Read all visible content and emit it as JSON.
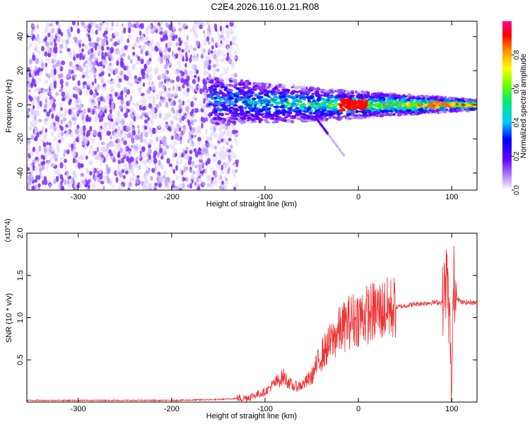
{
  "title": "C2E4.2026.116.01.21.R08",
  "chart_data": [
    {
      "type": "heatmap",
      "xlabel": "Height of straight line (km)",
      "ylabel": "Frequency (Hz)",
      "xlim": [
        -355,
        127
      ],
      "ylim": [
        -50,
        49
      ],
      "x_ticks": [
        -300,
        -200,
        -100,
        0,
        100
      ],
      "x_tick_labels": [
        "-300",
        "-200",
        "-100",
        "0",
        "100"
      ],
      "y_ticks": [
        -40,
        -20,
        0,
        20,
        40
      ],
      "y_tick_labels": [
        "-40",
        "-20",
        "0",
        "20",
        "40"
      ],
      "colorbar": {
        "label": "Normalized spectral amplitude",
        "range": [
          0,
          1
        ],
        "ticks": [
          0,
          0.2,
          0.4,
          0.6,
          0.8
        ],
        "tick_labels": [
          "0.0",
          "0.2",
          "0.4",
          "0.6",
          "0.8"
        ],
        "colormap": "rainbow (violet-blue-cyan-green-yellow-red-magenta)"
      },
      "features": {
        "noise_region_x": [
          -355,
          -140
        ],
        "band_center_freq": 0,
        "band_start_x": -160,
        "peak_amplitude_x": [
          -20,
          10
        ]
      },
      "grid": false
    },
    {
      "type": "line",
      "xlabel": "Height of straight line (km)",
      "ylabel": "SNR (10 * v/v)",
      "multiplier_label": "(x10^4)",
      "xlim": [
        -355,
        127
      ],
      "ylim": [
        0,
        2.0
      ],
      "x_ticks": [
        -300,
        -200,
        -100,
        0,
        100
      ],
      "x_tick_labels": [
        "-300",
        "-200",
        "-100",
        "0",
        "100"
      ],
      "y_ticks": [
        0.5,
        1.0,
        1.5,
        2.0
      ],
      "y_tick_labels": [
        "0.5",
        "1.0",
        "1.5",
        "2.0"
      ],
      "series_color": "#ee3333",
      "x": [
        -355,
        -300,
        -250,
        -200,
        -150,
        -120,
        -100,
        -90,
        -80,
        -70,
        -60,
        -50,
        -40,
        -30,
        -20,
        -10,
        0,
        10,
        20,
        30,
        40,
        50,
        60,
        70,
        80,
        90,
        95,
        98,
        100,
        102,
        105,
        110,
        115,
        127
      ],
      "y": [
        0.02,
        0.02,
        0.02,
        0.02,
        0.03,
        0.05,
        0.12,
        0.22,
        0.3,
        0.18,
        0.2,
        0.3,
        0.55,
        0.7,
        0.85,
        0.95,
        1.0,
        1.04,
        1.08,
        1.1,
        1.12,
        1.14,
        1.16,
        1.17,
        1.18,
        1.18,
        1.5,
        0.8,
        0.05,
        1.45,
        1.25,
        1.18,
        1.18,
        1.18
      ],
      "grid": false
    }
  ]
}
